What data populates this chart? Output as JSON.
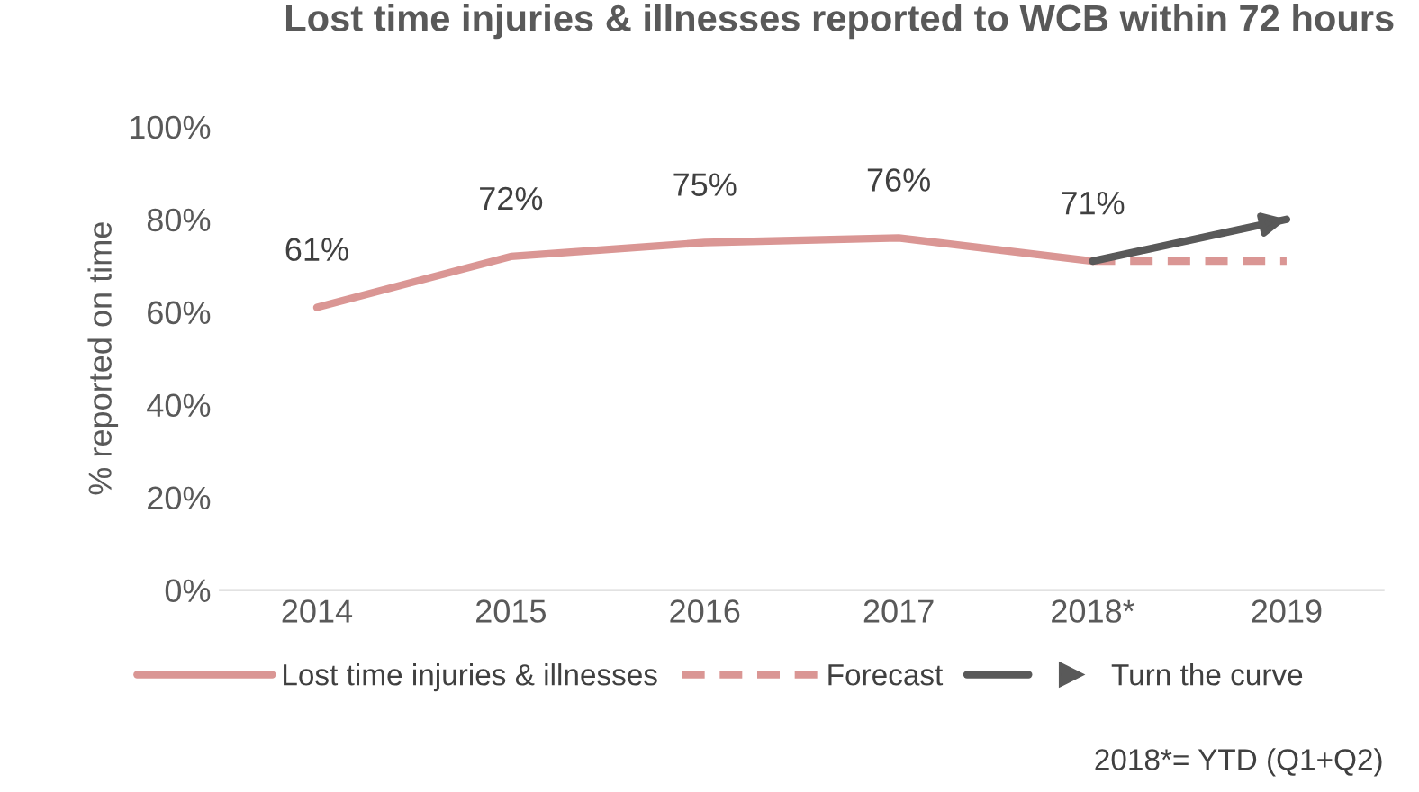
{
  "chart_data": {
    "type": "line",
    "title": "Lost time injuries & illnesses reported to WCB within 72 hours",
    "ylabel": "% reported on time",
    "categories": [
      "2014",
      "2015",
      "2016",
      "2017",
      "2018*",
      "2019"
    ],
    "series": [
      {
        "name": "Lost time injuries & illnesses",
        "color": "#da9694",
        "values": [
          61,
          72,
          75,
          76,
          71,
          null
        ],
        "value_labels": [
          "61%",
          "72%",
          "75%",
          "76%",
          "71%",
          null
        ],
        "line_style": "solid"
      },
      {
        "name": "Forecast",
        "color": "#da9694",
        "values": [
          null,
          null,
          null,
          null,
          71,
          71
        ],
        "line_style": "dashed"
      },
      {
        "name": "Turn the curve",
        "color": "#595959",
        "values": [
          null,
          null,
          null,
          null,
          71,
          80
        ],
        "line_style": "solid",
        "marker": "triangle"
      }
    ],
    "ylim": [
      0,
      100
    ],
    "yticks": [
      {
        "value": 0,
        "label": "0%"
      },
      {
        "value": 20,
        "label": "20%"
      },
      {
        "value": 40,
        "label": "40%"
      },
      {
        "value": 60,
        "label": "60%"
      },
      {
        "value": 80,
        "label": "80%"
      },
      {
        "value": 100,
        "label": "100%"
      }
    ],
    "grid": false,
    "legend": "bottom",
    "annotations": [
      "2018*= YTD (Q1+Q2)"
    ]
  }
}
